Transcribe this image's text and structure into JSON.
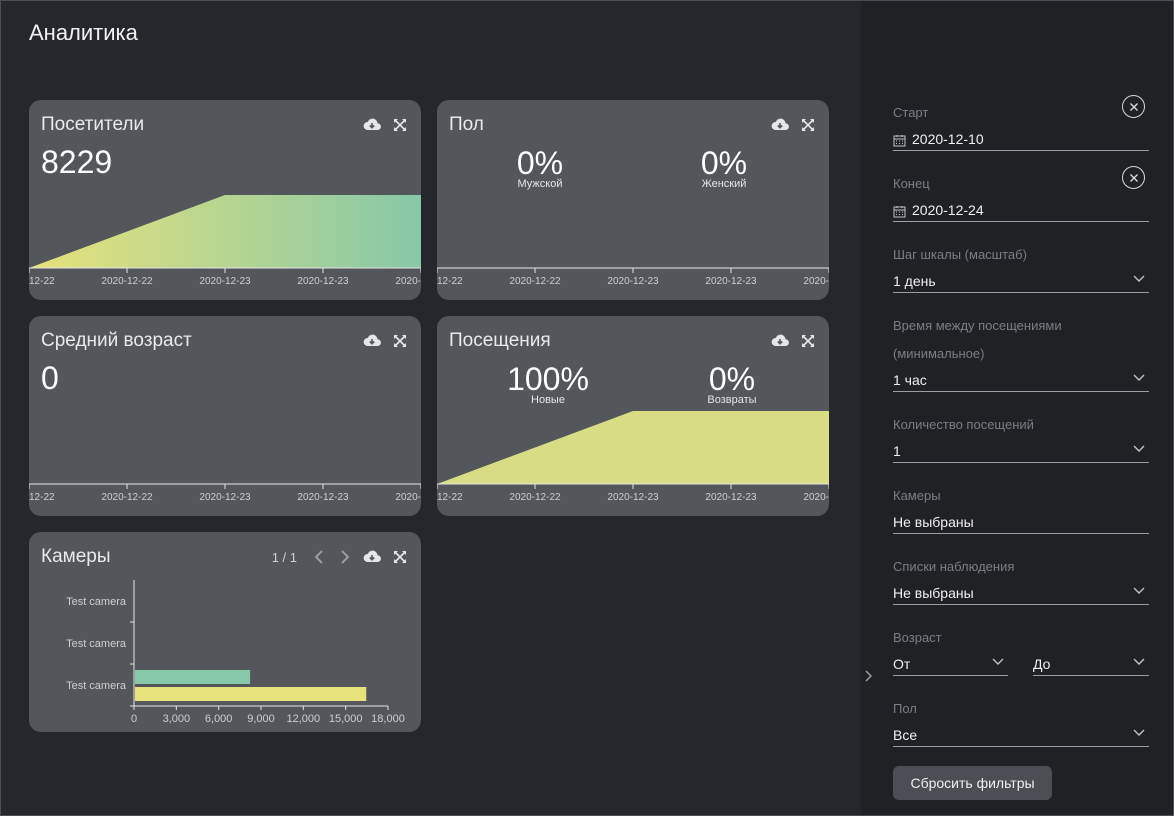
{
  "page": {
    "title": "Аналитика"
  },
  "cards": {
    "visitors": {
      "title": "Посетители",
      "value": "8229",
      "ticks": [
        "12-22",
        "2020-12-22",
        "2020-12-23",
        "2020-12-23",
        "2020-"
      ]
    },
    "gender": {
      "title": "Пол",
      "male": {
        "value": "0%",
        "label": "Мужской"
      },
      "female": {
        "value": "0%",
        "label": "Женский"
      },
      "ticks": [
        "12-22",
        "2020-12-22",
        "2020-12-23",
        "2020-12-23",
        "2020-"
      ]
    },
    "age": {
      "title": "Средний возраст",
      "value": "0",
      "ticks": [
        "12-22",
        "2020-12-22",
        "2020-12-23",
        "2020-12-23",
        "2020-"
      ]
    },
    "visits": {
      "title": "Посещения",
      "new": {
        "value": "100%",
        "label": "Новые"
      },
      "returns": {
        "value": "0%",
        "label": "Возвраты"
      },
      "ticks": [
        "12-22",
        "2020-12-22",
        "2020-12-23",
        "2020-12-23",
        "2020-"
      ]
    },
    "cameras": {
      "title": "Камеры",
      "pager": "1 / 1"
    }
  },
  "chart_data": [
    {
      "type": "area",
      "chart": "visitors",
      "x": [
        "12-22",
        "2020-12-22",
        "2020-12-23",
        "2020-12-23",
        "2020-"
      ],
      "values": [
        0,
        4115,
        8229,
        8229,
        8229
      ],
      "gradient": [
        "#e8e27a",
        "#86c8a8"
      ]
    },
    {
      "type": "area",
      "chart": "visits",
      "x": [
        "12-22",
        "2020-12-22",
        "2020-12-23",
        "2020-12-23",
        "2020-"
      ],
      "values": [
        0,
        50,
        100,
        100,
        100
      ],
      "color": "#d8dc84"
    },
    {
      "type": "bar",
      "chart": "cameras",
      "orientation": "horizontal",
      "categories": [
        "Test camera",
        "Test camera",
        "Test camera"
      ],
      "series": [
        {
          "values": [
            0,
            0,
            8229
          ],
          "color": "#86c8a8"
        },
        {
          "values": [
            0,
            0,
            16458
          ],
          "color": "#e8e27a"
        }
      ],
      "xticks": [
        "0",
        "3,000",
        "6,000",
        "9,000",
        "12,000",
        "15,000",
        "18,000"
      ],
      "xlim": [
        0,
        18000
      ]
    }
  ],
  "filters": {
    "start": {
      "label": "Старт",
      "value": "2020-12-10"
    },
    "end": {
      "label": "Конец",
      "value": "2020-12-24"
    },
    "scale": {
      "label": "Шаг шкалы (масштаб)",
      "value": "1 день"
    },
    "interval": {
      "label1": "Время между посещениями",
      "label2": "(минимальное)",
      "value": "1 час"
    },
    "count": {
      "label": "Количество посещений",
      "value": "1"
    },
    "cameras": {
      "label": "Камеры",
      "value": "Не выбраны"
    },
    "watchlists": {
      "label": "Списки наблюдения",
      "value": "Не выбраны"
    },
    "age": {
      "label": "Возраст",
      "from": "От",
      "to": "До"
    },
    "gender": {
      "label": "Пол",
      "value": "Все"
    },
    "reset": "Сбросить фильтры"
  },
  "colors": {
    "accent_green": "#86c8a8",
    "accent_yellow": "#e8e27a"
  }
}
